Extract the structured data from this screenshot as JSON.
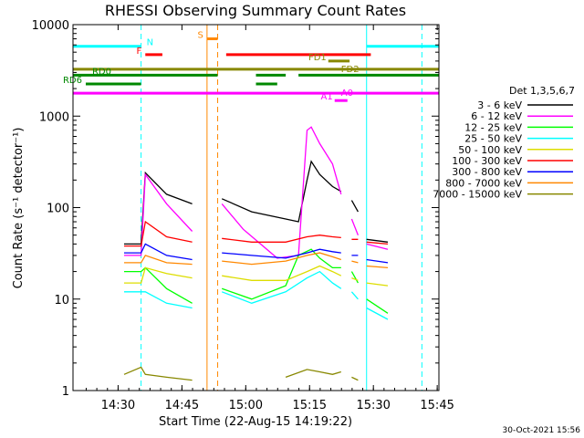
{
  "chart_data": {
    "type": "line",
    "title": "RHESSI Observing Summary Count Rates",
    "xlabel": "Start Time (22-Aug-15 14:19:22)",
    "ylabel": "Count Rate (s⁻¹ detector⁻¹)",
    "x_range_minutes": [
      0,
      86
    ],
    "y_range": [
      1,
      10000
    ],
    "y_scale": "log",
    "x_ticks": [
      {
        "label": "14:30",
        "t": 10.6
      },
      {
        "label": "14:45",
        "t": 25.6
      },
      {
        "label": "15:00",
        "t": 40.6
      },
      {
        "label": "15:15",
        "t": 55.6
      },
      {
        "label": "15:30",
        "t": 70.6
      },
      {
        "label": "15:45",
        "t": 85.6
      }
    ],
    "y_ticks": [
      {
        "label": "1",
        "v": 1
      },
      {
        "label": "10",
        "v": 10
      },
      {
        "label": "100",
        "v": 100
      },
      {
        "label": "1000",
        "v": 1000
      },
      {
        "label": "10000",
        "v": 10000
      }
    ],
    "legend_header": "Det 1,3,5,6,7",
    "legend_placement": "right",
    "footer_date": "30-Oct-2021 15:56",
    "grid": false,
    "series": [
      {
        "name": "3 - 6 keV",
        "color": "#000000",
        "points": [
          [
            12,
            40
          ],
          [
            16,
            40
          ],
          [
            17,
            240
          ],
          [
            22,
            140
          ],
          [
            28,
            110
          ],
          [
            28.3,
            null
          ],
          [
            35,
            125
          ],
          [
            42,
            90
          ],
          [
            50,
            75
          ],
          [
            53,
            70
          ],
          [
            55,
            200
          ],
          [
            56,
            320
          ],
          [
            58,
            230
          ],
          [
            61,
            170
          ],
          [
            63,
            150
          ],
          [
            63.5,
            null
          ],
          [
            65.5,
            120
          ],
          [
            67,
            90
          ],
          [
            67.5,
            null
          ],
          [
            69,
            45
          ],
          [
            74,
            42
          ]
        ]
      },
      {
        "name": "6 - 12 keV",
        "color": "#ff00ff",
        "points": [
          [
            12,
            30
          ],
          [
            16,
            30
          ],
          [
            17,
            230
          ],
          [
            22,
            110
          ],
          [
            28,
            55
          ],
          [
            28.3,
            null
          ],
          [
            35,
            110
          ],
          [
            40,
            58
          ],
          [
            48,
            28
          ],
          [
            53,
            30
          ],
          [
            55,
            700
          ],
          [
            56,
            760
          ],
          [
            58,
            500
          ],
          [
            61,
            300
          ],
          [
            63,
            140
          ],
          [
            63.5,
            null
          ],
          [
            65.5,
            75
          ],
          [
            67,
            50
          ],
          [
            67.5,
            null
          ],
          [
            69,
            40
          ],
          [
            74,
            35
          ]
        ]
      },
      {
        "name": "12 - 25 keV",
        "color": "#00ff00",
        "points": [
          [
            12,
            20
          ],
          [
            16,
            20
          ],
          [
            17,
            22
          ],
          [
            22,
            13
          ],
          [
            28,
            9
          ],
          [
            28.3,
            null
          ],
          [
            35,
            13
          ],
          [
            42,
            10
          ],
          [
            50,
            14
          ],
          [
            53,
            30
          ],
          [
            56,
            35
          ],
          [
            58,
            28
          ],
          [
            61,
            22
          ],
          [
            63,
            22
          ],
          [
            63.5,
            null
          ],
          [
            65.5,
            20
          ],
          [
            67,
            15
          ],
          [
            67.5,
            null
          ],
          [
            69,
            10
          ],
          [
            74,
            7
          ]
        ]
      },
      {
        "name": "25 - 50 keV",
        "color": "#00ffff",
        "points": [
          [
            12,
            12
          ],
          [
            16,
            12
          ],
          [
            17,
            12
          ],
          [
            22,
            9
          ],
          [
            28,
            8
          ],
          [
            28.3,
            null
          ],
          [
            35,
            12
          ],
          [
            42,
            9
          ],
          [
            50,
            12
          ],
          [
            55,
            17
          ],
          [
            58,
            20
          ],
          [
            61,
            15
          ],
          [
            63,
            13
          ],
          [
            63.5,
            null
          ],
          [
            65.5,
            12
          ],
          [
            67,
            10
          ],
          [
            67.5,
            null
          ],
          [
            69,
            8
          ],
          [
            74,
            6
          ]
        ]
      },
      {
        "name": "50 - 100 keV",
        "color": "#dddd00",
        "points": [
          [
            12,
            15
          ],
          [
            16,
            15
          ],
          [
            17,
            22
          ],
          [
            22,
            19
          ],
          [
            28,
            17
          ],
          [
            28.3,
            null
          ],
          [
            35,
            18
          ],
          [
            42,
            16
          ],
          [
            50,
            16
          ],
          [
            55,
            20
          ],
          [
            58,
            23
          ],
          [
            61,
            20
          ],
          [
            63,
            18
          ],
          [
            63.5,
            null
          ],
          [
            65.5,
            17
          ],
          [
            67,
            16
          ],
          [
            67.5,
            null
          ],
          [
            69,
            15
          ],
          [
            74,
            14
          ]
        ]
      },
      {
        "name": "100 - 300 keV",
        "color": "#ff0000",
        "points": [
          [
            12,
            38
          ],
          [
            16,
            38
          ],
          [
            17,
            70
          ],
          [
            22,
            48
          ],
          [
            28,
            42
          ],
          [
            28.3,
            null
          ],
          [
            35,
            46
          ],
          [
            42,
            42
          ],
          [
            50,
            42
          ],
          [
            55,
            48
          ],
          [
            58,
            50
          ],
          [
            61,
            48
          ],
          [
            63,
            47
          ],
          [
            63.5,
            null
          ],
          [
            65.5,
            45
          ],
          [
            67,
            45
          ],
          [
            67.5,
            null
          ],
          [
            69,
            42
          ],
          [
            74,
            40
          ]
        ]
      },
      {
        "name": "300 - 800 keV",
        "color": "#0000ff",
        "points": [
          [
            12,
            32
          ],
          [
            16,
            32
          ],
          [
            17,
            40
          ],
          [
            22,
            30
          ],
          [
            28,
            27
          ],
          [
            28.3,
            null
          ],
          [
            35,
            32
          ],
          [
            42,
            30
          ],
          [
            50,
            28
          ],
          [
            55,
            32
          ],
          [
            58,
            35
          ],
          [
            61,
            33
          ],
          [
            63,
            32
          ],
          [
            63.5,
            null
          ],
          [
            65.5,
            30
          ],
          [
            67,
            30
          ],
          [
            67.5,
            null
          ],
          [
            69,
            27
          ],
          [
            74,
            25
          ]
        ]
      },
      {
        "name": "800 - 7000 keV",
        "color": "#ff8800",
        "points": [
          [
            12,
            25
          ],
          [
            16,
            25
          ],
          [
            17,
            30
          ],
          [
            22,
            25
          ],
          [
            28,
            24
          ],
          [
            28.3,
            null
          ],
          [
            35,
            26
          ],
          [
            42,
            24
          ],
          [
            50,
            26
          ],
          [
            55,
            30
          ],
          [
            58,
            32
          ],
          [
            61,
            29
          ],
          [
            63,
            27
          ],
          [
            63.5,
            null
          ],
          [
            65.5,
            26
          ],
          [
            67,
            25
          ],
          [
            67.5,
            null
          ],
          [
            69,
            23
          ],
          [
            74,
            22
          ]
        ]
      },
      {
        "name": "7000 - 15000 keV",
        "color": "#888800",
        "points": [
          [
            12,
            1.5
          ],
          [
            16,
            1.8
          ],
          [
            17,
            1.5
          ],
          [
            22,
            1.4
          ],
          [
            28,
            1.3
          ],
          [
            28.3,
            null
          ],
          [
            50,
            1.4
          ],
          [
            55,
            1.7
          ],
          [
            58,
            1.6
          ],
          [
            61,
            1.5
          ],
          [
            63,
            1.6
          ],
          [
            63.5,
            null
          ],
          [
            65.5,
            1.4
          ],
          [
            67,
            1.3
          ]
        ]
      }
    ],
    "flags": [
      {
        "label": "N",
        "color": "#00ffff",
        "y": 5800,
        "segments": [
          [
            0,
            16
          ],
          [
            69,
            86
          ]
        ]
      },
      {
        "label": "S",
        "color": "#ff8800",
        "y": 7000,
        "segments": [
          [
            31.5,
            34
          ]
        ]
      },
      {
        "label": "F",
        "color": "#ff0000",
        "y": 4700,
        "segments": [
          [
            17,
            21
          ],
          [
            36,
            70
          ]
        ]
      },
      {
        "label": "FD1",
        "color": "#888800",
        "y": 4000,
        "segments": [
          [
            60,
            65
          ]
        ]
      },
      {
        "label": "FD2",
        "color": "#888800",
        "y": 3250,
        "segments": [
          [
            0,
            86
          ]
        ]
      },
      {
        "label": "RD0",
        "color": "#008800",
        "y": 2800,
        "segments": [
          [
            0,
            34
          ],
          [
            43,
            50
          ],
          [
            53,
            86
          ]
        ]
      },
      {
        "label": "RD6",
        "color": "#008800",
        "y": 2250,
        "segments": [
          [
            3,
            16
          ],
          [
            43,
            48
          ]
        ]
      },
      {
        "label": "A0",
        "color": "#ff00ff",
        "y": 1780,
        "segments": [
          [
            0,
            86
          ]
        ]
      },
      {
        "label": "A1",
        "color": "#ff00ff",
        "y": 1480,
        "segments": [
          [
            61.5,
            64.5
          ]
        ]
      }
    ],
    "vertical_markers": [
      {
        "t": 16,
        "color": "#00ffff",
        "style": "dashed"
      },
      {
        "t": 69,
        "color": "#00ffff",
        "style": "solid"
      },
      {
        "t": 82,
        "color": "#00ffff",
        "style": "dashed"
      },
      {
        "t": 31.5,
        "color": "#ff8800",
        "style": "solid"
      },
      {
        "t": 34,
        "color": "#ff8800",
        "style": "dashed"
      }
    ]
  }
}
